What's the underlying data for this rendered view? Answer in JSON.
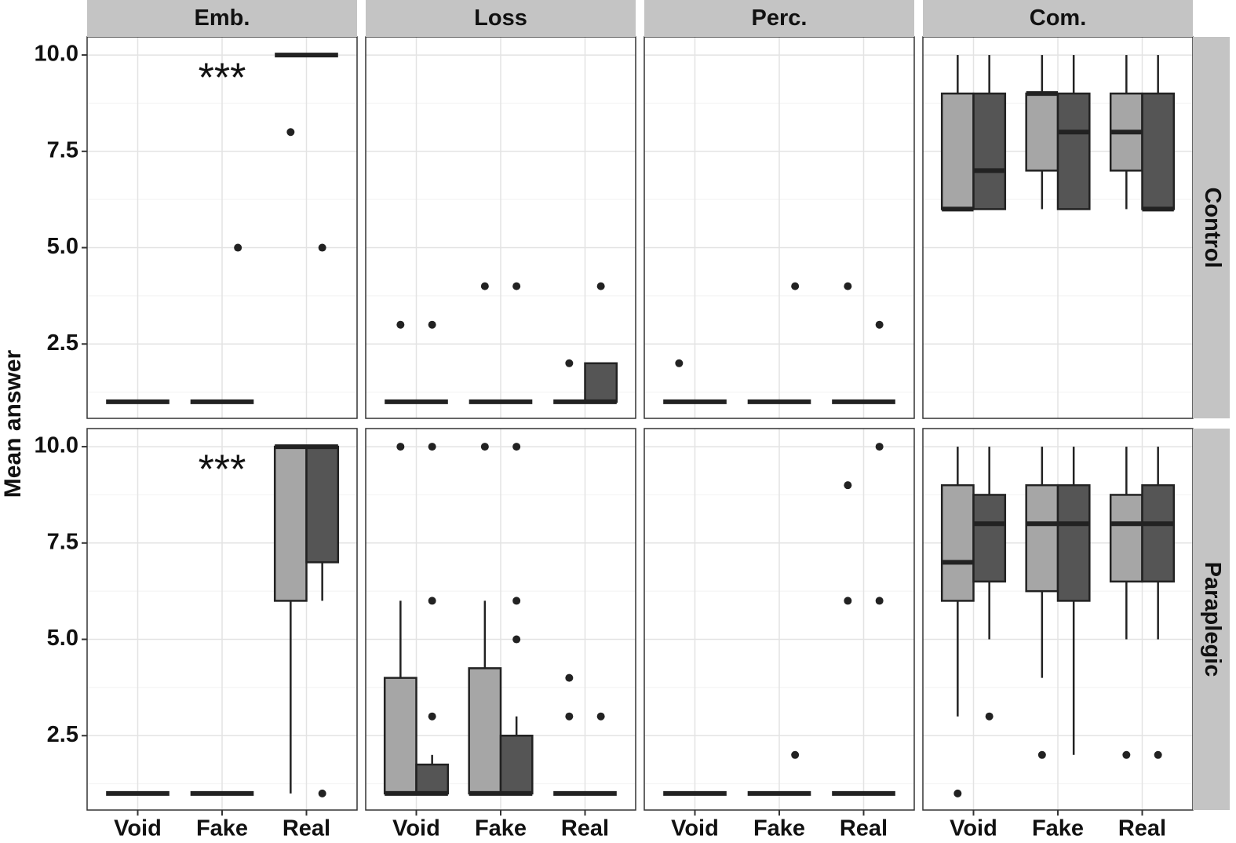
{
  "chart_data": {
    "type": "box",
    "y_label": "Mean answer",
    "columns": [
      "Emb.",
      "Loss",
      "Perc.",
      "Com."
    ],
    "rows": [
      "Control",
      "Paraplegic"
    ],
    "categories": [
      "Void",
      "Fake",
      "Real"
    ],
    "ylim": [
      0.57,
      10.47
    ],
    "yticks": [
      {
        "value": 2.5,
        "label": "2.5"
      },
      {
        "value": 5,
        "label": "5.0"
      },
      {
        "value": 7.5,
        "label": "7.5"
      },
      {
        "value": 10,
        "label": "10.0"
      }
    ],
    "grid": true,
    "series": [
      {
        "color": "#a6a6a6"
      },
      {
        "color": "#555555"
      }
    ],
    "panels": [
      {
        "annotation": "***",
        "series": [
          {
            "stats": [
              [
                1,
                1,
                1,
                1,
                1
              ],
              [
                1,
                1,
                1,
                1,
                1
              ],
              [
                10,
                10,
                10,
                10,
                10
              ]
            ],
            "outliers": [
              [],
              [],
              [
                8
              ]
            ]
          },
          {
            "stats": [
              [
                1,
                1,
                1,
                1,
                1
              ],
              [
                1,
                1,
                1,
                1,
                1
              ],
              [
                10,
                10,
                10,
                10,
                10
              ]
            ],
            "outliers": [
              [],
              [
                5
              ],
              [
                5
              ]
            ]
          }
        ]
      },
      {
        "series": [
          {
            "stats": [
              [
                1,
                1,
                1,
                1,
                1
              ],
              [
                1,
                1,
                1,
                1,
                1
              ],
              [
                1,
                1,
                1,
                1,
                1
              ]
            ],
            "outliers": [
              [
                3
              ],
              [
                4
              ],
              [
                2
              ]
            ]
          },
          {
            "stats": [
              [
                1,
                1,
                1,
                1,
                1
              ],
              [
                1,
                1,
                1,
                1,
                1
              ],
              [
                1,
                1,
                1,
                2,
                2
              ]
            ],
            "outliers": [
              [
                3
              ],
              [
                4
              ],
              [
                4
              ]
            ]
          }
        ]
      },
      {
        "series": [
          {
            "stats": [
              [
                1,
                1,
                1,
                1,
                1
              ],
              [
                1,
                1,
                1,
                1,
                1
              ],
              [
                1,
                1,
                1,
                1,
                1
              ]
            ],
            "outliers": [
              [
                2
              ],
              [],
              [
                4
              ]
            ]
          },
          {
            "stats": [
              [
                1,
                1,
                1,
                1,
                1
              ],
              [
                1,
                1,
                1,
                1,
                1
              ],
              [
                1,
                1,
                1,
                1,
                1
              ]
            ],
            "outliers": [
              [],
              [
                4
              ],
              [
                3
              ]
            ]
          }
        ]
      },
      {
        "series": [
          {
            "stats": [
              [
                6,
                6,
                6,
                9,
                10
              ],
              [
                6,
                7,
                9,
                9,
                10
              ],
              [
                6,
                7,
                8,
                9,
                10
              ]
            ],
            "outliers": [
              [],
              [],
              []
            ]
          },
          {
            "stats": [
              [
                6,
                6,
                7,
                9,
                10
              ],
              [
                6,
                6,
                8,
                9,
                10
              ],
              [
                6,
                6,
                6,
                9,
                10
              ]
            ],
            "outliers": [
              [],
              [],
              []
            ]
          }
        ]
      },
      {
        "annotation": "***",
        "series": [
          {
            "stats": [
              [
                1,
                1,
                1,
                1,
                1
              ],
              [
                1,
                1,
                1,
                1,
                1
              ],
              [
                1,
                6,
                10,
                10,
                10
              ]
            ],
            "outliers": [
              [],
              [],
              []
            ]
          },
          {
            "stats": [
              [
                1,
                1,
                1,
                1,
                1
              ],
              [
                1,
                1,
                1,
                1,
                1
              ],
              [
                6,
                7,
                10,
                10,
                10
              ]
            ],
            "outliers": [
              [],
              [],
              [
                1
              ]
            ]
          }
        ]
      },
      {
        "series": [
          {
            "stats": [
              [
                1,
                1,
                1,
                4,
                6
              ],
              [
                1,
                1,
                1,
                4.25,
                6
              ],
              [
                1,
                1,
                1,
                1,
                1
              ]
            ],
            "outliers": [
              [
                10
              ],
              [
                10
              ],
              [
                4,
                3
              ]
            ]
          },
          {
            "stats": [
              [
                1,
                1,
                1,
                1.75,
                2
              ],
              [
                1,
                1,
                1,
                2.5,
                3
              ],
              [
                1,
                1,
                1,
                1,
                1
              ]
            ],
            "outliers": [
              [
                10,
                6,
                3
              ],
              [
                10,
                6,
                5
              ],
              [
                3
              ]
            ]
          }
        ]
      },
      {
        "series": [
          {
            "stats": [
              [
                1,
                1,
                1,
                1,
                1
              ],
              [
                1,
                1,
                1,
                1,
                1
              ],
              [
                1,
                1,
                1,
                1,
                1
              ]
            ],
            "outliers": [
              [],
              [],
              [
                9,
                6
              ]
            ]
          },
          {
            "stats": [
              [
                1,
                1,
                1,
                1,
                1
              ],
              [
                1,
                1,
                1,
                1,
                1
              ],
              [
                1,
                1,
                1,
                1,
                1
              ]
            ],
            "outliers": [
              [],
              [
                2
              ],
              [
                10,
                6
              ]
            ]
          }
        ]
      },
      {
        "series": [
          {
            "stats": [
              [
                3,
                6,
                7,
                9,
                10
              ],
              [
                4,
                6.25,
                8,
                9,
                10
              ],
              [
                5,
                6.5,
                8,
                8.75,
                10
              ]
            ],
            "outliers": [
              [
                1
              ],
              [
                2
              ],
              [
                2
              ]
            ]
          },
          {
            "stats": [
              [
                5,
                6.5,
                8,
                8.75,
                10
              ],
              [
                2,
                6,
                8,
                9,
                10
              ],
              [
                5,
                6.5,
                8,
                9,
                10
              ]
            ],
            "outliers": [
              [
                3
              ],
              [],
              [
                2
              ]
            ]
          }
        ]
      }
    ]
  }
}
